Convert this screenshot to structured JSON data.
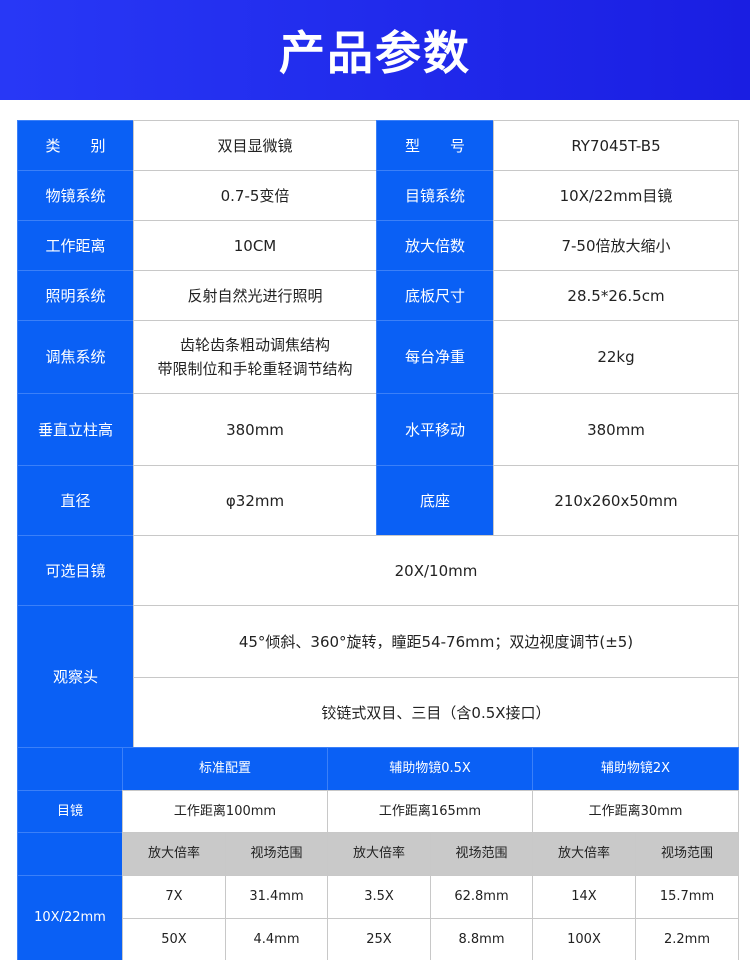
{
  "header": {
    "title": "产品参数"
  },
  "specs": [
    {
      "label": "类　　别",
      "value": "双目显微镜",
      "label2": "型　　号",
      "value2": "RY7045T-B5"
    },
    {
      "label": "物镜系统",
      "value": "0.7-5变倍",
      "label2": "目镜系统",
      "value2": "10X/22mm目镜"
    },
    {
      "label": "工作距离",
      "value": "10CM",
      "label2": "放大倍数",
      "value2": "7-50倍放大缩小"
    },
    {
      "label": "照明系统",
      "value": "反射自然光进行照明",
      "label2": "底板尺寸",
      "value2": "28.5*26.5cm"
    },
    {
      "label": "调焦系统",
      "value": "齿轮齿条粗动调焦结构\n带限制位和手轮重轻调节结构",
      "label2": "每台净重",
      "value2": "22kg"
    },
    {
      "label": "垂直立柱高",
      "value": "380mm",
      "label2": "水平移动",
      "value2": "380mm"
    },
    {
      "label": "直径",
      "value": "φ32mm",
      "label2": "底座",
      "value2": "210x260x50mm"
    },
    {
      "label": "可选目镜",
      "value": "20X/10mm"
    },
    {
      "label": "观察头",
      "values": [
        "45°倾斜、360°旋转，瞳距54-76mm；双边视度调节(±5)",
        "铰链式双目、三目（含0.5X接口）"
      ]
    }
  ],
  "eyepiece_table": {
    "row_label": "目镜",
    "eyepiece": "10X/22mm",
    "configs": [
      {
        "name": "标准配置",
        "distance": "工作距离100mm",
        "rows": [
          [
            "7X",
            "31.4mm"
          ],
          [
            "50X",
            "4.4mm"
          ]
        ]
      },
      {
        "name": "辅助物镜0.5X",
        "distance": "工作距离165mm",
        "rows": [
          [
            "3.5X",
            "62.8mm"
          ],
          [
            "25X",
            "8.8mm"
          ]
        ]
      },
      {
        "name": "辅助物镜2X",
        "distance": "工作距离30mm",
        "rows": [
          [
            "14X",
            "15.7mm"
          ],
          [
            "100X",
            "2.2mm"
          ]
        ]
      }
    ],
    "col_headers": [
      "放大倍率",
      "视场范围"
    ]
  },
  "colors": {
    "header": "#2838f6",
    "label_cell": "#0a60f5",
    "subheader": "#c9c9c9"
  }
}
